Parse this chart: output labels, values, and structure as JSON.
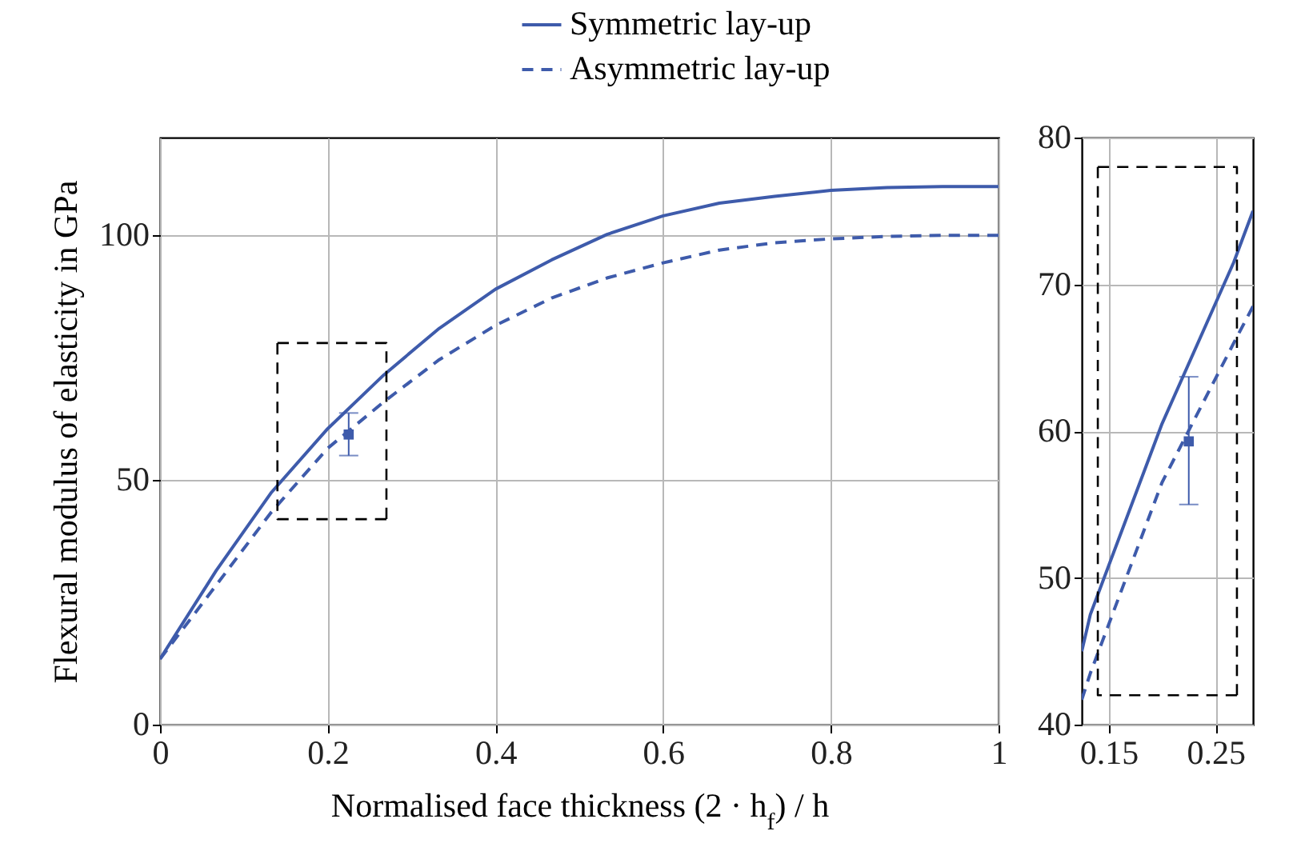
{
  "chart_data": [
    {
      "type": "line",
      "xlabel": "Normalised face thickness (2 · h$_{f}$) / h",
      "ylabel": "Flexural modulus of elasticity in GPa",
      "xlim": [
        0,
        1
      ],
      "ylim": [
        0,
        120
      ],
      "xticks": [
        0,
        0.2,
        0.4,
        0.6,
        0.8,
        1
      ],
      "yticks": [
        0,
        50,
        100
      ],
      "grid": true,
      "legend": "top",
      "series": [
        {
          "name": "Symmetric lay-up",
          "color": "#3e5bab",
          "line_style": "solid",
          "x": [
            0,
            0.067,
            0.133,
            0.2,
            0.267,
            0.333,
            0.4,
            0.467,
            0.533,
            0.6,
            0.667,
            0.733,
            0.8,
            0.867,
            0.933,
            1
          ],
          "values": [
            13.4,
            31.5,
            47.5,
            60.5,
            71.5,
            81,
            89,
            95,
            100.2,
            104,
            106.6,
            108,
            109.2,
            109.8,
            110,
            110
          ]
        },
        {
          "name": "Asymmetric lay-up",
          "color": "#3e5bab",
          "line_style": "dashed",
          "x": [
            0,
            0.067,
            0.133,
            0.2,
            0.267,
            0.333,
            0.4,
            0.467,
            0.533,
            0.6,
            0.667,
            0.733,
            0.8,
            0.867,
            0.933,
            1
          ],
          "values": [
            13.4,
            28.5,
            43.5,
            56.5,
            66,
            74.6,
            81.6,
            87.2,
            91.3,
            94.4,
            97,
            98.5,
            99.3,
            99.8,
            100,
            100
          ]
        },
        {
          "type": "line",
          "color": "#000000",
          "line_style": "dashed",
          "x": [
            0.14,
            0.14,
            0.27
          ],
          "values": [
            78,
            42,
            42
          ]
        },
        {
          "type": "line",
          "color": "#000000",
          "line_style": "dashed",
          "x": [
            0.14,
            0.27,
            0.27
          ],
          "values": [
            78,
            78,
            42
          ]
        },
        {
          "type": "scatter",
          "color": "#3e5bab",
          "marker": "square",
          "x": [
            0.225
          ],
          "values": [
            59.3
          ],
          "errors": [
            [
              55,
              63.7
            ]
          ]
        }
      ]
    },
    {
      "type": "line",
      "xlim": [
        0.125,
        0.285
      ],
      "ylim": [
        40,
        80
      ],
      "xticks": [
        0.15,
        0.25
      ],
      "yticks": [
        40,
        50,
        60,
        70,
        80
      ],
      "grid": true,
      "series": [
        {
          "color": "#3e5bab",
          "line_style": "solid",
          "x": [
            0.125,
            0.133,
            0.2,
            0.267,
            0.285
          ],
          "values": [
            45,
            47.5,
            60.5,
            71.5,
            75
          ]
        },
        {
          "color": "#3e5bab",
          "line_style": "dashed",
          "x": [
            0.125,
            0.133,
            0.2,
            0.267,
            0.285
          ],
          "values": [
            41.7,
            43.5,
            56.5,
            66,
            68.5
          ]
        },
        {
          "type": "line",
          "color": "#000000",
          "line_style": "dashed",
          "x": [
            0.14,
            0.14,
            0.27
          ],
          "values": [
            78,
            42,
            42
          ]
        },
        {
          "type": "line",
          "color": "#000000",
          "line_style": "dashed",
          "x": [
            0.14,
            0.27,
            0.27
          ],
          "values": [
            78,
            78,
            42
          ]
        },
        {
          "type": "scatter",
          "color": "#3e5bab",
          "marker": "square",
          "x": [
            0.225
          ],
          "values": [
            59.3
          ],
          "errors": [
            [
              55,
              63.7
            ]
          ]
        }
      ]
    }
  ]
}
